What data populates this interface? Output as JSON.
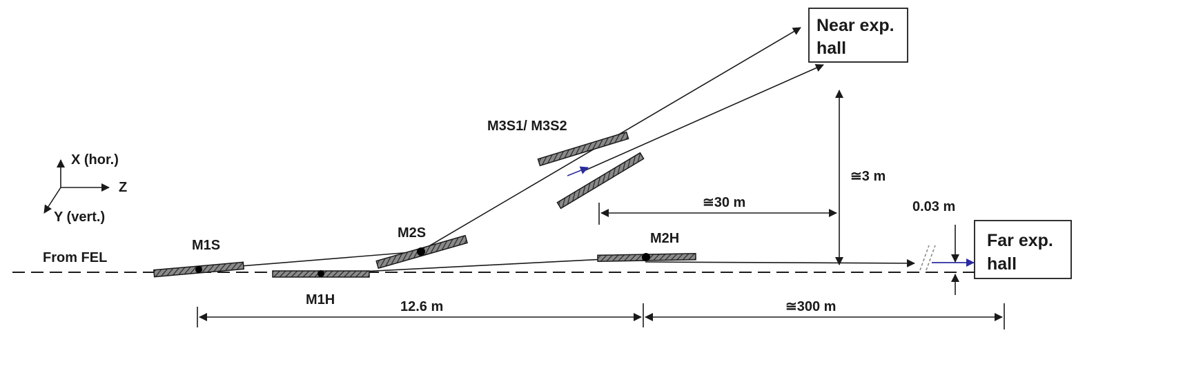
{
  "axes": {
    "x_label": "X (hor.)",
    "z_label": "Z",
    "y_label": "Y (vert.)"
  },
  "source_label": "From FEL",
  "mirrors": {
    "m1s": "M1S",
    "m1h": "M1H",
    "m2s": "M2S",
    "m2h": "M2H",
    "m3": "M3S1/ M3S2"
  },
  "halls": {
    "near_line1": "Near exp.",
    "near_line2": "hall",
    "far_line1": "Far exp.",
    "far_line2": "hall"
  },
  "dimensions": {
    "d_12_6": "12.6 m",
    "d_300": "≅300 m",
    "d_30": "≅30 m",
    "d_3": "≅3 m",
    "d_003": "0.03 m"
  },
  "colors": {
    "line": "#1a1a1a",
    "blue_arrow": "#2a2aa0"
  }
}
